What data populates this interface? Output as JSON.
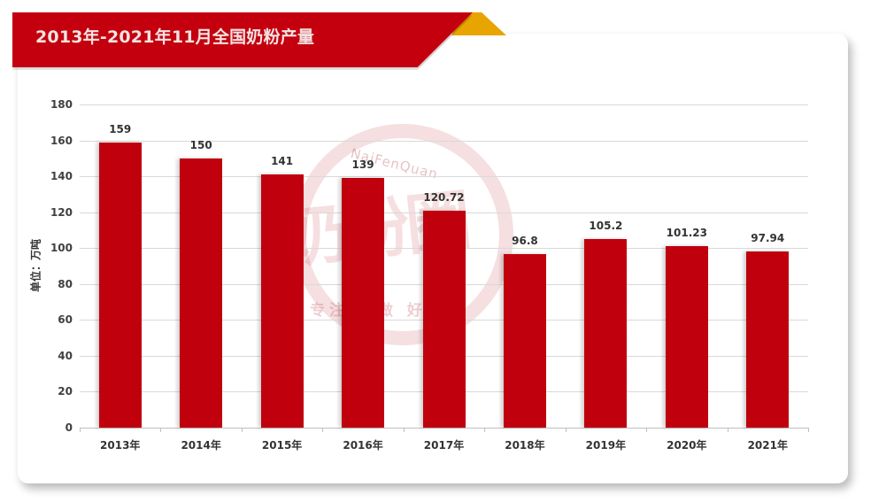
{
  "header": {
    "title": "2013年-2021年11月全国奶粉产量"
  },
  "watermark": {
    "logo_text": "奶粉圈",
    "arc_text": "NaiFenQuan",
    "slogan": "专注  为做  好"
  },
  "axes": {
    "ylabel": "单位：万吨",
    "yticks": [
      "0",
      "20",
      "40",
      "60",
      "80",
      "100",
      "120",
      "140",
      "160",
      "180"
    ]
  },
  "colors": {
    "banner": "#c4000e",
    "banner_fold": "#e8a400",
    "bar": "#c0000d"
  },
  "chart_data": {
    "type": "bar",
    "title": "2013年-2021年11月全国奶粉产量",
    "xlabel": "",
    "ylabel": "单位：万吨",
    "categories": [
      "2013年",
      "2014年",
      "2015年",
      "2016年",
      "2017年",
      "2018年",
      "2019年",
      "2020年",
      "2021年"
    ],
    "values": [
      159,
      150,
      141,
      139,
      120.72,
      96.8,
      105.2,
      101.23,
      97.94
    ],
    "value_labels": [
      "159",
      "150",
      "141",
      "139",
      "120.72",
      "96.8",
      "105.2",
      "101.23",
      "97.94"
    ],
    "ylim": [
      0,
      180
    ],
    "ytick_step": 20,
    "grid": true,
    "legend": "none"
  }
}
